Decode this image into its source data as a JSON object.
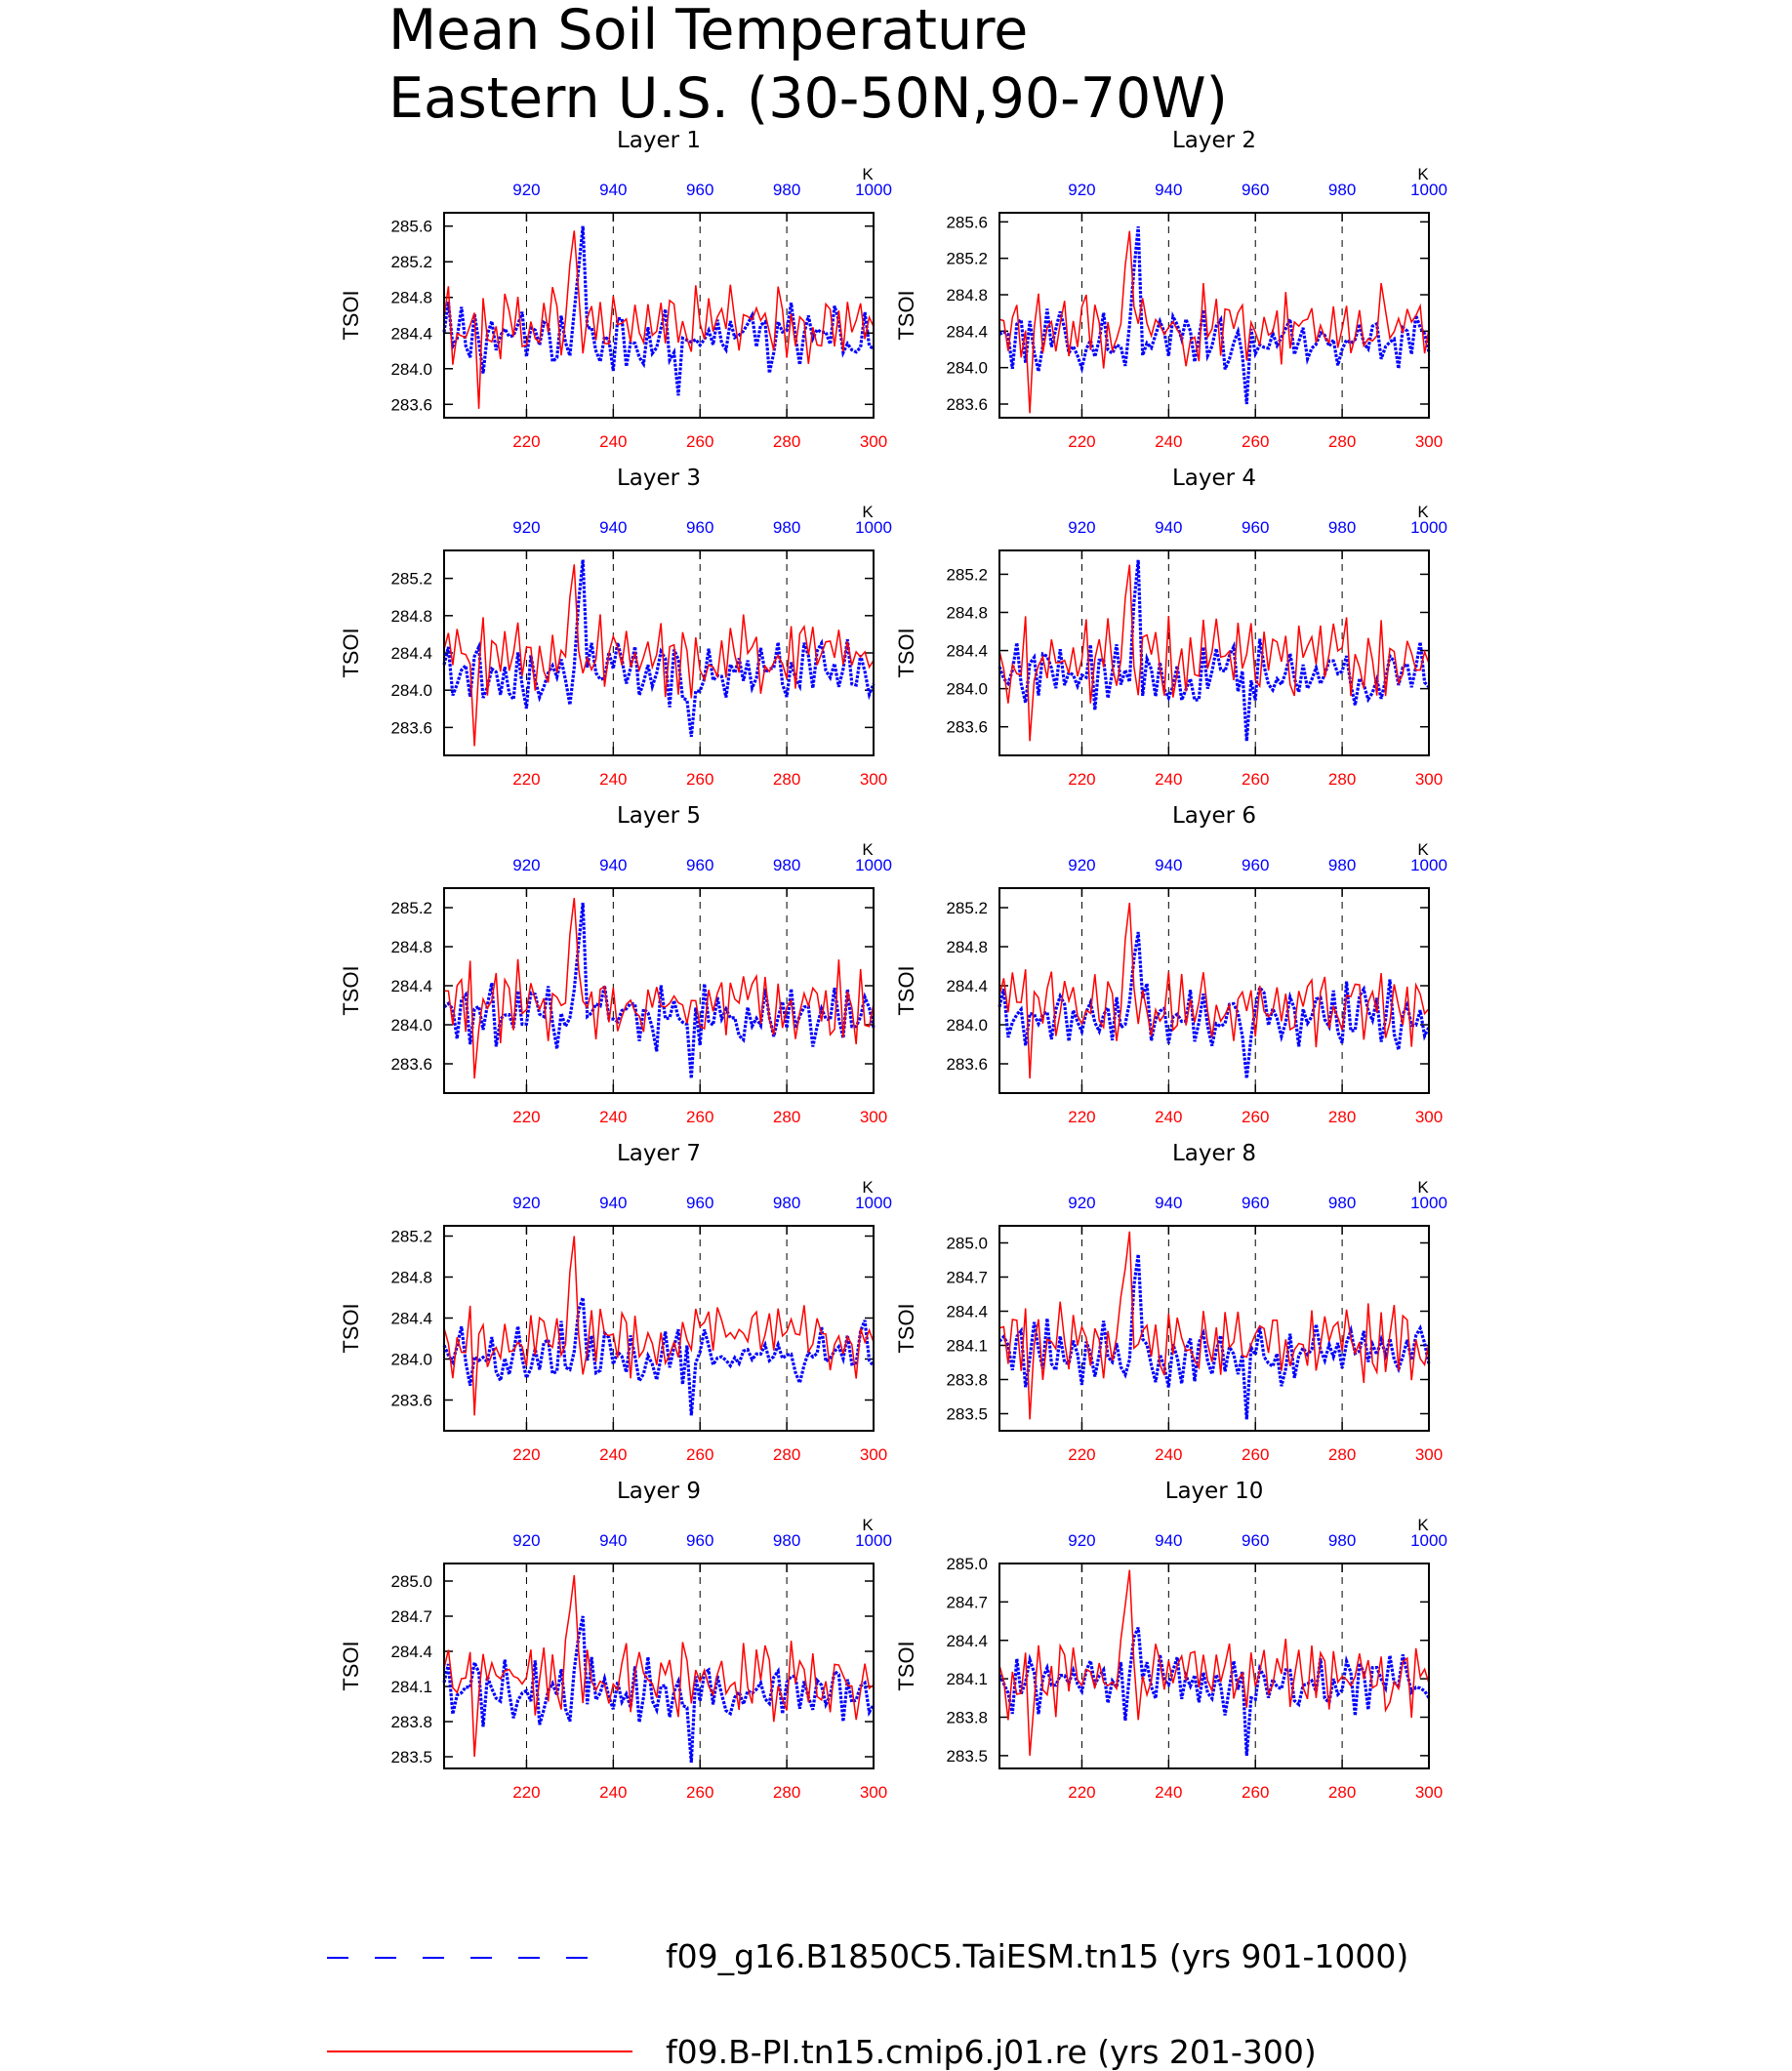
{
  "title_line1": "Mean Soil Temperature",
  "title_line2": "Eastern U.S. (30-50N,90-70W)",
  "colors": {
    "red_series": "#ff0000",
    "blue_series": "#0000ff",
    "axis": "#000000"
  },
  "legend": [
    {
      "label": "f09_g16.B1850C5.TaiESM.tn15 (yrs 901-1000)",
      "color": "#0000ff",
      "style": "dashed"
    },
    {
      "label": "f09.B-PI.tn15.cmip6.j01.re (yrs 201-300)",
      "color": "#ff0000",
      "style": "solid"
    }
  ],
  "chart_data": [
    {
      "type": "line",
      "panel": "Layer 1",
      "title": "Layer 1",
      "ylabel": "TSOI",
      "top_unit": "K",
      "ylim": [
        283.45,
        285.75
      ],
      "yticks": [
        283.6,
        284.0,
        284.4,
        284.8,
        285.2,
        285.6
      ],
      "x_bottom": [
        201,
        300
      ],
      "x_top": [
        901,
        1000
      ],
      "bottom_ticks": [
        220,
        240,
        260,
        280,
        300
      ],
      "top_ticks": [
        920,
        940,
        960,
        980,
        1000
      ],
      "grid": "dashed verticals at bottom ticks",
      "series": [
        {
          "name": "f09_g16.B1850C5.TaiESM.tn15 (yrs 901-1000)",
          "axis": "top",
          "color": "blue",
          "mean": 284.35,
          "amplitude": 0.3,
          "min": 283.7,
          "max": 285.6,
          "min_at": 955,
          "max_at": 933
        },
        {
          "name": "f09.B-PI.tn15.cmip6.j01.re (yrs 201-300)",
          "axis": "bottom",
          "color": "red",
          "mean": 284.5,
          "amplitude": 0.35,
          "min": 283.55,
          "max": 285.55,
          "min_at": 209,
          "max_at": 231
        }
      ]
    },
    {
      "type": "line",
      "panel": "Layer 2",
      "title": "Layer 2",
      "ylabel": "TSOI",
      "top_unit": "K",
      "ylim": [
        283.45,
        285.7
      ],
      "yticks": [
        283.6,
        284.0,
        284.4,
        284.8,
        285.2,
        285.6
      ],
      "x_bottom": [
        201,
        300
      ],
      "x_top": [
        901,
        1000
      ],
      "bottom_ticks": [
        220,
        240,
        260,
        280,
        300
      ],
      "top_ticks": [
        920,
        940,
        960,
        980,
        1000
      ],
      "grid": "dashed verticals at bottom ticks",
      "series": [
        {
          "name": "f09_g16.B1850C5.TaiESM.tn15 (yrs 901-1000)",
          "axis": "top",
          "color": "blue",
          "mean": 284.3,
          "amplitude": 0.3,
          "min": 283.6,
          "max": 285.55,
          "min_at": 958,
          "max_at": 933
        },
        {
          "name": "f09.B-PI.tn15.cmip6.j01.re (yrs 201-300)",
          "axis": "bottom",
          "color": "red",
          "mean": 284.45,
          "amplitude": 0.35,
          "min": 283.5,
          "max": 285.5,
          "min_at": 208,
          "max_at": 231
        }
      ]
    },
    {
      "type": "line",
      "panel": "Layer 3",
      "title": "Layer 3",
      "ylabel": "TSOI",
      "top_unit": "K",
      "ylim": [
        283.3,
        285.5
      ],
      "yticks": [
        283.6,
        284.0,
        284.4,
        284.8,
        285.2
      ],
      "x_bottom": [
        201,
        300
      ],
      "x_top": [
        901,
        1000
      ],
      "bottom_ticks": [
        220,
        240,
        260,
        280,
        300
      ],
      "top_ticks": [
        920,
        940,
        960,
        980,
        1000
      ],
      "grid": "dashed verticals at bottom ticks",
      "series": [
        {
          "name": "f09_g16.B1850C5.TaiESM.tn15 (yrs 901-1000)",
          "axis": "top",
          "color": "blue",
          "mean": 284.2,
          "amplitude": 0.3,
          "min": 283.5,
          "max": 285.4,
          "min_at": 958,
          "max_at": 933
        },
        {
          "name": "f09.B-PI.tn15.cmip6.j01.re (yrs 201-300)",
          "axis": "bottom",
          "color": "red",
          "mean": 284.35,
          "amplitude": 0.35,
          "min": 283.4,
          "max": 285.35,
          "min_at": 208,
          "max_at": 231
        }
      ]
    },
    {
      "type": "line",
      "panel": "Layer 4",
      "title": "Layer 4",
      "ylabel": "TSOI",
      "top_unit": "K",
      "ylim": [
        283.3,
        285.45
      ],
      "yticks": [
        283.6,
        284.0,
        284.4,
        284.8,
        285.2
      ],
      "x_bottom": [
        201,
        300
      ],
      "x_top": [
        901,
        1000
      ],
      "bottom_ticks": [
        220,
        240,
        260,
        280,
        300
      ],
      "top_ticks": [
        920,
        940,
        960,
        980,
        1000
      ],
      "grid": "dashed verticals at bottom ticks",
      "series": [
        {
          "name": "f09_g16.B1850C5.TaiESM.tn15 (yrs 901-1000)",
          "axis": "top",
          "color": "blue",
          "mean": 284.15,
          "amplitude": 0.3,
          "min": 283.45,
          "max": 285.35,
          "min_at": 958,
          "max_at": 933
        },
        {
          "name": "f09.B-PI.tn15.cmip6.j01.re (yrs 201-300)",
          "axis": "bottom",
          "color": "red",
          "mean": 284.3,
          "amplitude": 0.35,
          "min": 283.45,
          "max": 285.3,
          "min_at": 208,
          "max_at": 231
        }
      ]
    },
    {
      "type": "line",
      "panel": "Layer 5",
      "title": "Layer 5",
      "ylabel": "TSOI",
      "top_unit": "K",
      "ylim": [
        283.3,
        285.4
      ],
      "yticks": [
        283.6,
        284.0,
        284.4,
        284.8,
        285.2
      ],
      "x_bottom": [
        201,
        300
      ],
      "x_top": [
        901,
        1000
      ],
      "bottom_ticks": [
        220,
        240,
        260,
        280,
        300
      ],
      "top_ticks": [
        920,
        940,
        960,
        980,
        1000
      ],
      "grid": "dashed verticals at bottom ticks",
      "series": [
        {
          "name": "f09_g16.B1850C5.TaiESM.tn15 (yrs 901-1000)",
          "axis": "top",
          "color": "blue",
          "mean": 284.1,
          "amplitude": 0.28,
          "min": 283.45,
          "max": 285.25,
          "min_at": 958,
          "max_at": 933
        },
        {
          "name": "f09.B-PI.tn15.cmip6.j01.re (yrs 201-300)",
          "axis": "bottom",
          "color": "red",
          "mean": 284.25,
          "amplitude": 0.33,
          "min": 283.45,
          "max": 285.3,
          "min_at": 208,
          "max_at": 231
        }
      ]
    },
    {
      "type": "line",
      "panel": "Layer 6",
      "title": "Layer 6",
      "ylabel": "TSOI",
      "top_unit": "K",
      "ylim": [
        283.3,
        285.4
      ],
      "yticks": [
        283.6,
        284.0,
        284.4,
        284.8,
        285.2
      ],
      "x_bottom": [
        201,
        300
      ],
      "x_top": [
        901,
        1000
      ],
      "bottom_ticks": [
        220,
        240,
        260,
        280,
        300
      ],
      "top_ticks": [
        920,
        940,
        960,
        980,
        1000
      ],
      "grid": "dashed verticals at bottom ticks",
      "series": [
        {
          "name": "f09_g16.B1850C5.TaiESM.tn15 (yrs 901-1000)",
          "axis": "top",
          "color": "blue",
          "mean": 284.1,
          "amplitude": 0.27,
          "min": 283.45,
          "max": 284.95,
          "min_at": 958,
          "max_at": 933
        },
        {
          "name": "f09.B-PI.tn15.cmip6.j01.re (yrs 201-300)",
          "axis": "bottom",
          "color": "red",
          "mean": 284.2,
          "amplitude": 0.32,
          "min": 283.45,
          "max": 285.25,
          "min_at": 208,
          "max_at": 231
        }
      ]
    },
    {
      "type": "line",
      "panel": "Layer 7",
      "title": "Layer 7",
      "ylabel": "TSOI",
      "top_unit": "K",
      "ylim": [
        283.3,
        285.3
      ],
      "yticks": [
        283.6,
        284.0,
        284.4,
        284.8,
        285.2
      ],
      "x_bottom": [
        201,
        300
      ],
      "x_top": [
        901,
        1000
      ],
      "bottom_ticks": [
        220,
        240,
        260,
        280,
        300
      ],
      "top_ticks": [
        920,
        940,
        960,
        980,
        1000
      ],
      "grid": "dashed verticals at bottom ticks",
      "series": [
        {
          "name": "f09_g16.B1850C5.TaiESM.tn15 (yrs 901-1000)",
          "axis": "top",
          "color": "blue",
          "mean": 284.05,
          "amplitude": 0.25,
          "min": 283.45,
          "max": 284.6,
          "min_at": 958,
          "max_at": 933
        },
        {
          "name": "f09.B-PI.tn15.cmip6.j01.re (yrs 201-300)",
          "axis": "bottom",
          "color": "red",
          "mean": 284.2,
          "amplitude": 0.3,
          "min": 283.45,
          "max": 285.2,
          "min_at": 208,
          "max_at": 231
        }
      ]
    },
    {
      "type": "line",
      "panel": "Layer 8",
      "title": "Layer 8",
      "ylabel": "TSOI",
      "top_unit": "K",
      "ylim": [
        283.35,
        285.15
      ],
      "yticks": [
        283.5,
        283.8,
        284.1,
        284.4,
        284.7,
        285.0
      ],
      "x_bottom": [
        201,
        300
      ],
      "x_top": [
        901,
        1000
      ],
      "bottom_ticks": [
        220,
        240,
        260,
        280,
        300
      ],
      "top_ticks": [
        920,
        940,
        960,
        980,
        1000
      ],
      "grid": "dashed verticals at bottom ticks",
      "series": [
        {
          "name": "f09_g16.B1850C5.TaiESM.tn15 (yrs 901-1000)",
          "axis": "top",
          "color": "blue",
          "mean": 284.05,
          "amplitude": 0.24,
          "min": 283.45,
          "max": 284.9,
          "min_at": 958,
          "max_at": 933
        },
        {
          "name": "f09.B-PI.tn15.cmip6.j01.re (yrs 201-300)",
          "axis": "bottom",
          "color": "red",
          "mean": 284.15,
          "amplitude": 0.28,
          "min": 283.45,
          "max": 285.1,
          "min_at": 208,
          "max_at": 231
        }
      ]
    },
    {
      "type": "line",
      "panel": "Layer 9",
      "title": "Layer 9",
      "ylabel": "TSOI",
      "top_unit": "K",
      "ylim": [
        283.4,
        285.15
      ],
      "yticks": [
        283.5,
        283.8,
        284.1,
        284.4,
        284.7,
        285.0
      ],
      "x_bottom": [
        201,
        300
      ],
      "x_top": [
        901,
        1000
      ],
      "bottom_ticks": [
        220,
        240,
        260,
        280,
        300
      ],
      "top_ticks": [
        920,
        940,
        960,
        980,
        1000
      ],
      "grid": "dashed verticals at bottom ticks",
      "series": [
        {
          "name": "f09_g16.B1850C5.TaiESM.tn15 (yrs 901-1000)",
          "axis": "top",
          "color": "blue",
          "mean": 284.05,
          "amplitude": 0.22,
          "min": 283.45,
          "max": 284.7,
          "min_at": 958,
          "max_at": 933
        },
        {
          "name": "f09.B-PI.tn15.cmip6.j01.re (yrs 201-300)",
          "axis": "bottom",
          "color": "red",
          "mean": 284.15,
          "amplitude": 0.27,
          "min": 283.5,
          "max": 285.05,
          "min_at": 208,
          "max_at": 231
        }
      ]
    },
    {
      "type": "line",
      "panel": "Layer 10",
      "title": "Layer 10",
      "ylabel": "TSOI",
      "top_unit": "K",
      "ylim": [
        283.4,
        285.0
      ],
      "yticks": [
        283.5,
        283.8,
        284.1,
        284.4,
        284.7,
        285.0
      ],
      "x_bottom": [
        201,
        300
      ],
      "x_top": [
        901,
        1000
      ],
      "bottom_ticks": [
        220,
        240,
        260,
        280,
        300
      ],
      "top_ticks": [
        920,
        940,
        960,
        980,
        1000
      ],
      "grid": "dashed verticals at bottom ticks",
      "series": [
        {
          "name": "f09_g16.B1850C5.TaiESM.tn15 (yrs 901-1000)",
          "axis": "top",
          "color": "blue",
          "mean": 284.05,
          "amplitude": 0.2,
          "min": 283.5,
          "max": 284.5,
          "min_at": 958,
          "max_at": 933
        },
        {
          "name": "f09.B-PI.tn15.cmip6.j01.re (yrs 201-300)",
          "axis": "bottom",
          "color": "red",
          "mean": 284.1,
          "amplitude": 0.25,
          "min": 283.5,
          "max": 284.95,
          "min_at": 208,
          "max_at": 231
        }
      ]
    }
  ]
}
